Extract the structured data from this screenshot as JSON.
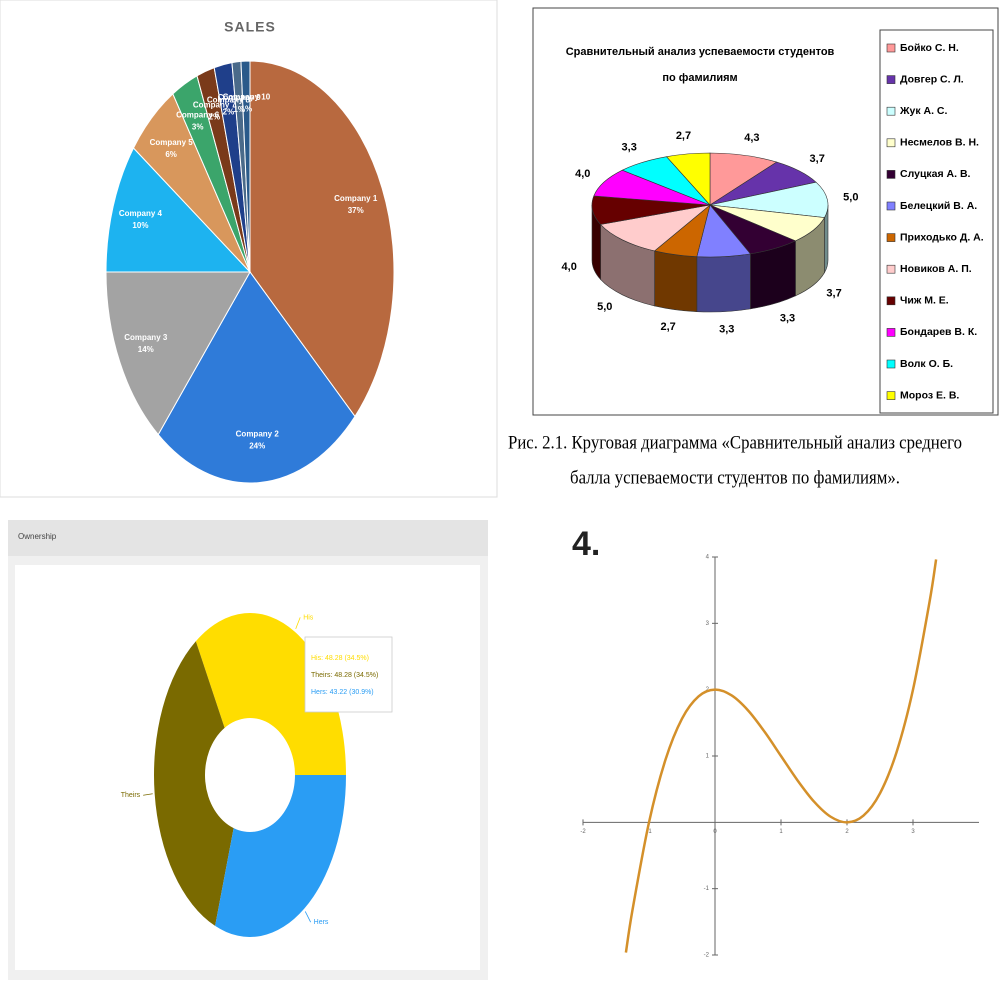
{
  "chart_data": [
    {
      "type": "pie",
      "title": "SALES",
      "categories": [
        "Company 1",
        "Company 2",
        "Company 3",
        "Company 4",
        "Company 5",
        "Company 6",
        "Company 7",
        "Company 8",
        "Company 9",
        "Company 10"
      ],
      "values": [
        37,
        24,
        14,
        10,
        6,
        3,
        2,
        2,
        1,
        1
      ],
      "value_labels": [
        "37%",
        "24%",
        "14%",
        "10%",
        "6%",
        "3%",
        "2%",
        "2%",
        "1%",
        "1%"
      ],
      "colors": [
        "#b8693f",
        "#2f7bd9",
        "#a3a3a3",
        "#1db3f0",
        "#d8975c",
        "#3ba56b",
        "#7a3a1a",
        "#1f3f8a",
        "#4a6a8a",
        "#2a5a8a"
      ]
    },
    {
      "type": "pie",
      "three_d": true,
      "title": [
        "Сравнительный анализ успеваемости студентов",
        "по фамилиям"
      ],
      "categories": [
        "Бойко С. Н.",
        "Довгер С. Л.",
        "Жук А. С.",
        "Несмелов В. Н.",
        "Слуцкая А. В.",
        "Белецкий В. А.",
        "Приходько Д. А.",
        "Новиков А. П.",
        "Чиж М. Е.",
        "Бондарев В. К.",
        "Волк О. Б.",
        "Мороз Е. В."
      ],
      "values": [
        4.3,
        3.7,
        5.0,
        3.7,
        3.3,
        3.3,
        2.7,
        5.0,
        4.0,
        4.0,
        3.3,
        2.7
      ],
      "value_labels": [
        "4,3",
        "3,7",
        "5,0",
        "3,7",
        "3,3",
        "3,3",
        "2,7",
        "5,0",
        "4,0",
        "4,0",
        "3,3",
        "2,7"
      ],
      "colors": [
        "#ff9999",
        "#6633aa",
        "#ccffff",
        "#ffffcc",
        "#330033",
        "#8080ff",
        "#cc6600",
        "#ffcccc",
        "#660000",
        "#ff00ff",
        "#00ffff",
        "#ffff00"
      ],
      "legend": "right",
      "caption": [
        "Рис. 2.1. Круговая диаграмма «Сравнительный анализ среднего",
        "балла успеваемости студентов по фамилиям»."
      ]
    },
    {
      "type": "donut",
      "title": "Ownership",
      "categories": [
        "His",
        "Theirs",
        "Hers"
      ],
      "values": [
        48.28,
        48.28,
        43.22
      ],
      "value_labels": [
        "His: 48.28 (34.5%)",
        "Theirs: 48.28 (34.5%)",
        "Hers: 43.22 (30.9%)"
      ],
      "colors": [
        "#ffdd00",
        "#7a6a00",
        "#2a9df4"
      ]
    },
    {
      "type": "line",
      "title": "4.",
      "x": [
        -1.35,
        -1.25,
        -1,
        -0.75,
        -0.5,
        -0.25,
        0,
        0.25,
        0.5,
        0.75,
        1,
        1.25,
        1.5,
        1.75,
        2,
        2.25,
        2.5,
        2.75,
        3,
        3.25,
        3.35
      ],
      "values": [
        -1.964,
        -1.32,
        0,
        0.945,
        1.563,
        1.898,
        2,
        1.914,
        1.688,
        1.367,
        1,
        0.633,
        0.313,
        0.086,
        0,
        0.102,
        0.438,
        1.055,
        2,
        3.32,
        3.964
      ],
      "color": "#d4902a",
      "xlim": [
        -2,
        4
      ],
      "ylim": [
        -2,
        4
      ],
      "xticks": [
        -2,
        -1,
        0,
        1,
        2,
        3
      ],
      "yticks": [
        -2,
        -1,
        1,
        2,
        3,
        4
      ]
    }
  ]
}
